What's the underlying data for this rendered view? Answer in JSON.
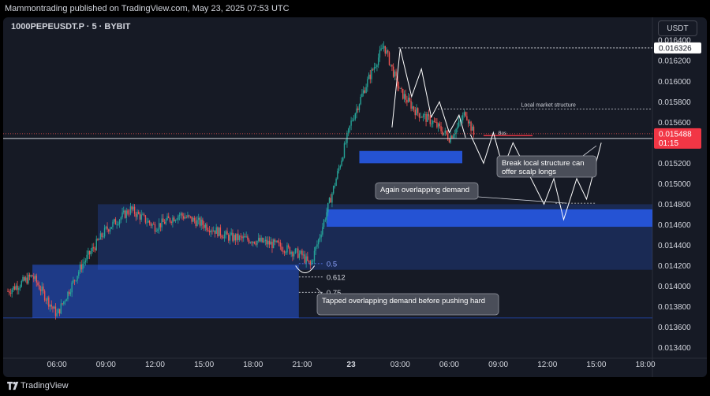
{
  "header": {
    "published": "Mammontrading published on TradingView.com, May 23, 2025 07:53 UTC"
  },
  "chart_header": {
    "symbol": "1000PEPEUSDT.P · 5 · BYBIT",
    "currency": "USDT"
  },
  "footer": {
    "brand": "TradingView"
  },
  "colors": {
    "background": "#161a25",
    "zone": "#2962ff",
    "bull": "#26a69a",
    "bear": "#ef5350",
    "price_label": "#f23645",
    "text": "#d1d4dc",
    "ann_box": "#4a4e59"
  },
  "chart_data": {
    "type": "line",
    "title": "",
    "x_tick_labels": [
      "06:00",
      "09:00",
      "12:00",
      "15:00",
      "18:00",
      "21:00",
      "23",
      "03:00",
      "06:00",
      "09:00",
      "12:00",
      "15:00",
      "18:00"
    ],
    "y_tick_labels": [
      "0.016400",
      "0.016200",
      "0.016000",
      "0.015800",
      "0.015600",
      "0.015400",
      "0.015200",
      "0.015000",
      "0.014800",
      "0.014600",
      "0.014400",
      "0.014200",
      "0.014000",
      "0.013800",
      "0.013600",
      "0.013400"
    ],
    "ylim": [
      0.01332,
      0.01644
    ],
    "current_price": {
      "value": "0.015488",
      "countdown": "01:15"
    },
    "high_label": "0.016326",
    "series": [
      {
        "name": "",
        "x": [
          "03:00",
          "04:30",
          "06:00",
          "07:30",
          "09:00",
          "10:30",
          "12:00",
          "13:30",
          "15:00",
          "16:30",
          "18:00",
          "19:30",
          "21:00",
          "21:30",
          "22:00",
          "23:00",
          "00:00",
          "01:00",
          "02:00",
          "03:00",
          "04:00",
          "05:00",
          "06:00",
          "06:30",
          "07:00",
          "07:30"
        ],
        "values": [
          0.01395,
          0.0141,
          0.01372,
          0.0142,
          0.01455,
          0.01475,
          0.01458,
          0.0147,
          0.0146,
          0.01448,
          0.01445,
          0.0144,
          0.0143,
          0.0142,
          0.01445,
          0.015,
          0.0156,
          0.016,
          0.01635,
          0.0159,
          0.0157,
          0.0156,
          0.01545,
          0.01555,
          0.0157,
          0.01548
        ]
      }
    ],
    "zones": [
      {
        "label": "demand_4h",
        "y_top": 0.0148,
        "y_bottom": 0.01416
      },
      {
        "label": "demand_lower",
        "y_top": 0.01421,
        "y_bottom": 0.01369
      },
      {
        "label": "demand_upper_strong",
        "y_top": 0.01475,
        "y_bottom": 0.01458
      },
      {
        "label": "demand_local",
        "y_top": 0.01532,
        "y_bottom": 0.0152
      }
    ],
    "fib_levels": [
      "0.5",
      "0.612",
      "0.75"
    ],
    "annotations": {
      "local_structure": "Local market structure",
      "bos": "Bos",
      "break_local": "Break local structure can offer scalp longs",
      "again_overlapping": "Again overlapping demand",
      "tapped": "Tapped overlapping demand before pushing hard"
    },
    "projection_path": [
      0.01548,
      0.0152,
      0.0155,
      0.01515,
      0.0154,
      0.0148,
      0.01505,
      0.01465,
      0.01505,
      0.01485,
      0.0154
    ]
  }
}
